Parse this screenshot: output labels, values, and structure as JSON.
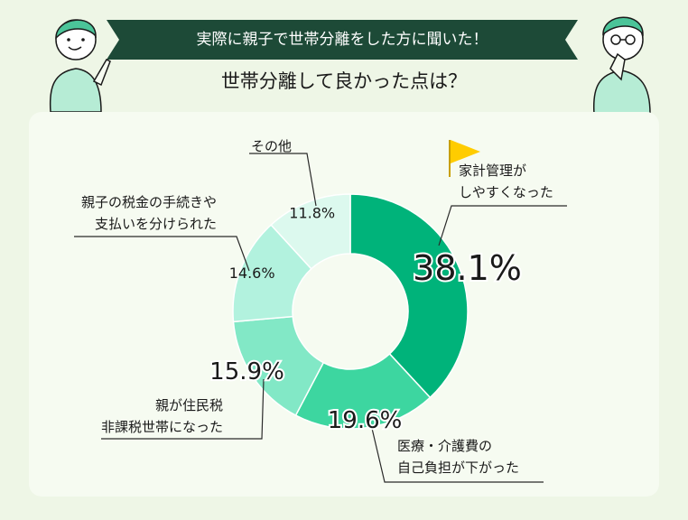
{
  "header": {
    "banner": "実際に親子で世帯分離をした方に聞いた！",
    "question": "世帯分離して良かった点は？"
  },
  "colors": {
    "dark_green": "#1d4a37",
    "slice_1": "#00b37a",
    "slice_2": "#3dd6a0",
    "slice_3": "#82e8c6",
    "slice_4": "#b2f2de",
    "slice_5": "#dcf9ee"
  },
  "chart_data": {
    "type": "pie",
    "title": "世帯分離して良かった点は？",
    "unit": "%",
    "slices": [
      {
        "label_lines": [
          "家計管理が",
          "しやすくなった"
        ],
        "value": 38.1,
        "value_label": "38.1%"
      },
      {
        "label_lines": [
          "医療・介護費の",
          "自己負担が下がった"
        ],
        "value": 19.6,
        "value_label": "19.6%"
      },
      {
        "label_lines": [
          "親が住民税",
          "非課税世帯になった"
        ],
        "value": 15.9,
        "value_label": "15.9%"
      },
      {
        "label_lines": [
          "親子の税金の手続きや",
          "支払いを分けられた"
        ],
        "value": 14.6,
        "value_label": "14.6%"
      },
      {
        "label_lines": [
          "その他"
        ],
        "value": 11.8,
        "value_label": "11.8%"
      }
    ]
  }
}
